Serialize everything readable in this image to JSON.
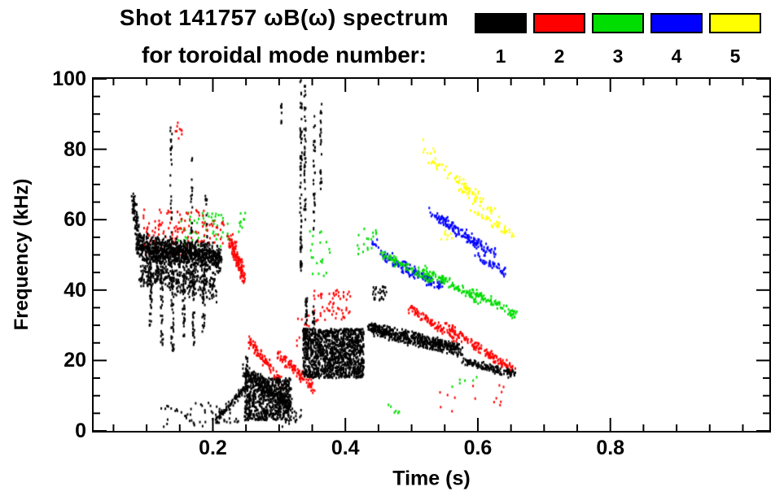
{
  "title": {
    "line1": "Shot 141757 ωB(ω) spectrum",
    "line2": "for toroidal mode number:"
  },
  "legend": {
    "entries": [
      {
        "label": "1",
        "color": "#000000"
      },
      {
        "label": "2",
        "color": "#ff0000"
      },
      {
        "label": "3",
        "color": "#00dd00"
      },
      {
        "label": "4",
        "color": "#0000ff"
      },
      {
        "label": "5",
        "color": "#ffff00"
      }
    ]
  },
  "chart_data": {
    "type": "scatter",
    "title": "Shot 141757 ωB(ω) spectrum for toroidal mode number",
    "xlabel": "Time (s)",
    "ylabel": "Frequency (kHz)",
    "xlim": [
      0.02,
      1.04
    ],
    "ylim": [
      0,
      100
    ],
    "grid": false,
    "legend_position": "top-right",
    "xticks": {
      "major": [
        0.2,
        0.4,
        0.6,
        0.8
      ],
      "labels": [
        "0.2",
        "0.4",
        "0.6",
        "0.8"
      ],
      "minor_step": 0.05
    },
    "yticks": {
      "major": [
        0,
        20,
        40,
        60,
        80,
        100
      ],
      "labels": [
        "0",
        "20",
        "40",
        "60",
        "80",
        "100"
      ],
      "minor_step": 5
    },
    "series": [
      {
        "name": "n=1",
        "color": "#000000",
        "clusters": [
          {
            "kind": "band",
            "t": [
              0.078,
              0.088
            ],
            "f": [
              67,
              54
            ],
            "s": 3,
            "n": 80
          },
          {
            "kind": "band",
            "t": [
              0.085,
              0.212
            ],
            "f": [
              52,
              49
            ],
            "s": 4.5,
            "n": 1000
          },
          {
            "kind": "band",
            "t": [
              0.09,
              0.205
            ],
            "f": [
              45,
              41
            ],
            "s": 5,
            "n": 350
          },
          {
            "kind": "vline",
            "t": [
              0.106
            ],
            "f": [
              30,
              48
            ],
            "s": 0.004,
            "n": 40
          },
          {
            "kind": "vline",
            "t": [
              0.123
            ],
            "f": [
              24,
              48
            ],
            "s": 0.004,
            "n": 40
          },
          {
            "kind": "vline",
            "t": [
              0.139
            ],
            "f": [
              22,
              46
            ],
            "s": 0.004,
            "n": 40
          },
          {
            "kind": "vline",
            "t": [
              0.156
            ],
            "f": [
              26,
              46
            ],
            "s": 0.004,
            "n": 35
          },
          {
            "kind": "vline",
            "t": [
              0.171
            ],
            "f": [
              24,
              46
            ],
            "s": 0.004,
            "n": 35
          },
          {
            "kind": "vline",
            "t": [
              0.186
            ],
            "f": [
              28,
              44
            ],
            "s": 0.004,
            "n": 30
          },
          {
            "kind": "vline",
            "t": [
              0.137
            ],
            "f": [
              56,
              87
            ],
            "s": 0.003,
            "n": 26
          },
          {
            "kind": "vline",
            "t": [
              0.168
            ],
            "f": [
              56,
              80
            ],
            "s": 0.003,
            "n": 18
          },
          {
            "kind": "vline",
            "t": [
              0.19
            ],
            "f": [
              55,
              67
            ],
            "s": 0.003,
            "n": 12
          },
          {
            "kind": "band",
            "t": [
              0.205,
              0.252
            ],
            "f": [
              3,
              13
            ],
            "s": 1.2,
            "n": 90
          },
          {
            "kind": "box",
            "t": [
              0.248,
              0.318
            ],
            "f": [
              3,
              15
            ],
            "s": 0,
            "n": 650
          },
          {
            "kind": "band",
            "t": [
              0.248,
              0.318
            ],
            "f": [
              17,
              7
            ],
            "s": 2.5,
            "n": 220
          },
          {
            "kind": "vline",
            "t": [
              0.251
            ],
            "f": [
              14,
              21
            ],
            "s": 0.003,
            "n": 18
          },
          {
            "kind": "vline",
            "t": [
              0.333
            ],
            "f": [
              45,
              100
            ],
            "s": 0.003,
            "n": 70
          },
          {
            "kind": "vline",
            "t": [
              0.339
            ],
            "f": [
              60,
              98
            ],
            "s": 0.0025,
            "n": 45
          },
          {
            "kind": "vline",
            "t": [
              0.353
            ],
            "f": [
              55,
              92
            ],
            "s": 0.0025,
            "n": 32
          },
          {
            "kind": "vline",
            "t": [
              0.363
            ],
            "f": [
              68,
              97
            ],
            "s": 0.0025,
            "n": 26
          },
          {
            "kind": "box",
            "t": [
              0.336,
              0.428
            ],
            "f": [
              15,
              29
            ],
            "s": 0,
            "n": 1250
          },
          {
            "kind": "vline",
            "t": [
              0.341
            ],
            "f": [
              29,
              38
            ],
            "s": 0.003,
            "n": 22
          },
          {
            "kind": "vline",
            "t": [
              0.352
            ],
            "f": [
              29,
              36
            ],
            "s": 0.003,
            "n": 16
          },
          {
            "kind": "band",
            "t": [
              0.435,
              0.575
            ],
            "f": [
              29,
              23
            ],
            "s": 2.2,
            "n": 520
          },
          {
            "kind": "box",
            "t": [
              0.44,
              0.462
            ],
            "f": [
              37,
              41
            ],
            "s": 0,
            "n": 28
          },
          {
            "kind": "band",
            "t": [
              0.578,
              0.655
            ],
            "f": [
              20,
              16
            ],
            "s": 1.4,
            "n": 130
          },
          {
            "kind": "box",
            "t": [
              0.12,
              0.24
            ],
            "f": [
              1,
              8
            ],
            "s": 0,
            "n": 55
          },
          {
            "kind": "vline",
            "t": [
              0.303
            ],
            "f": [
              86,
              93
            ],
            "s": 0.002,
            "n": 8
          },
          {
            "kind": "box",
            "t": [
              0.29,
              0.335
            ],
            "f": [
              1,
              6
            ],
            "s": 0,
            "n": 25
          }
        ]
      },
      {
        "name": "n=2",
        "color": "#ff0000",
        "clusters": [
          {
            "kind": "box",
            "t": [
              0.095,
              0.19
            ],
            "f": [
              50,
              63
            ],
            "s": 0,
            "n": 130
          },
          {
            "kind": "box",
            "t": [
              0.142,
              0.155
            ],
            "f": [
              83,
              88
            ],
            "s": 0,
            "n": 9
          },
          {
            "kind": "band",
            "t": [
              0.225,
              0.247
            ],
            "f": [
              55,
              44
            ],
            "s": 3,
            "n": 130
          },
          {
            "kind": "band",
            "t": [
              0.253,
              0.302
            ],
            "f": [
              26,
              14
            ],
            "s": 2,
            "n": 95
          },
          {
            "kind": "band",
            "t": [
              0.298,
              0.352
            ],
            "f": [
              22,
              12
            ],
            "s": 2,
            "n": 95
          },
          {
            "kind": "box",
            "t": [
              0.352,
              0.408
            ],
            "f": [
              31,
              40
            ],
            "s": 0,
            "n": 60
          },
          {
            "kind": "band",
            "t": [
              0.497,
              0.568
            ],
            "f": [
              35,
              26
            ],
            "s": 1.6,
            "n": 90
          },
          {
            "kind": "band",
            "t": [
              0.552,
              0.628
            ],
            "f": [
              30,
              20
            ],
            "s": 1.6,
            "n": 95
          },
          {
            "kind": "band",
            "t": [
              0.612,
              0.658
            ],
            "f": [
              22,
              17
            ],
            "s": 1.4,
            "n": 55
          },
          {
            "kind": "box",
            "t": [
              0.54,
              0.645
            ],
            "f": [
              4,
              13
            ],
            "s": 0,
            "n": 14
          },
          {
            "kind": "box",
            "t": [
              0.19,
              0.218
            ],
            "f": [
              53,
              60
            ],
            "s": 0,
            "n": 22
          },
          {
            "kind": "box",
            "t": [
              0.325,
              0.35
            ],
            "f": [
              24,
              34
            ],
            "s": 0,
            "n": 16
          }
        ]
      },
      {
        "name": "n=3",
        "color": "#00dd00",
        "clusters": [
          {
            "kind": "box",
            "t": [
              0.148,
              0.225
            ],
            "f": [
              52,
              62
            ],
            "s": 0,
            "n": 55
          },
          {
            "kind": "box",
            "t": [
              0.238,
              0.252
            ],
            "f": [
              56,
              62
            ],
            "s": 0,
            "n": 10
          },
          {
            "kind": "box",
            "t": [
              0.345,
              0.378
            ],
            "f": [
              44,
              57
            ],
            "s": 0,
            "n": 20
          },
          {
            "kind": "box",
            "t": [
              0.418,
              0.448
            ],
            "f": [
              50,
              58
            ],
            "s": 0,
            "n": 18
          },
          {
            "kind": "band",
            "t": [
              0.455,
              0.532
            ],
            "f": [
              50,
              43
            ],
            "s": 1.6,
            "n": 85
          },
          {
            "kind": "band",
            "t": [
              0.52,
              0.602
            ],
            "f": [
              46,
              37
            ],
            "s": 1.6,
            "n": 95
          },
          {
            "kind": "band",
            "t": [
              0.588,
              0.658
            ],
            "f": [
              40,
              33
            ],
            "s": 1.5,
            "n": 75
          },
          {
            "kind": "box",
            "t": [
              0.463,
              0.482
            ],
            "f": [
              5,
              9
            ],
            "s": 0,
            "n": 6
          },
          {
            "kind": "box",
            "t": [
              0.56,
              0.6
            ],
            "f": [
              12,
              16
            ],
            "s": 0,
            "n": 6
          }
        ]
      },
      {
        "name": "n=4",
        "color": "#0000ff",
        "clusters": [
          {
            "kind": "band",
            "t": [
              0.455,
              0.545
            ],
            "f": [
              50,
              41
            ],
            "s": 2,
            "n": 140
          },
          {
            "kind": "band",
            "t": [
              0.528,
              0.625
            ],
            "f": [
              62,
              50
            ],
            "s": 2,
            "n": 150
          },
          {
            "kind": "band",
            "t": [
              0.598,
              0.642
            ],
            "f": [
              50,
              45
            ],
            "s": 1.5,
            "n": 45
          },
          {
            "kind": "box",
            "t": [
              0.44,
              0.455
            ],
            "f": [
              52,
              56
            ],
            "s": 0,
            "n": 8
          }
        ]
      },
      {
        "name": "n=5",
        "color": "#ffff00",
        "clusters": [
          {
            "kind": "band",
            "t": [
              0.522,
              0.602
            ],
            "f": [
              78,
              67
            ],
            "s": 2,
            "n": 45
          },
          {
            "kind": "band",
            "t": [
              0.558,
              0.635
            ],
            "f": [
              72,
              60
            ],
            "s": 2,
            "n": 45
          },
          {
            "kind": "band",
            "t": [
              0.588,
              0.655
            ],
            "f": [
              63,
              55
            ],
            "s": 1.8,
            "n": 40
          },
          {
            "kind": "box",
            "t": [
              0.538,
              0.565
            ],
            "f": [
              54,
              58
            ],
            "s": 0,
            "n": 8
          },
          {
            "kind": "box",
            "t": [
              0.515,
              0.535
            ],
            "f": [
              79,
              84
            ],
            "s": 0,
            "n": 5
          }
        ]
      }
    ]
  }
}
